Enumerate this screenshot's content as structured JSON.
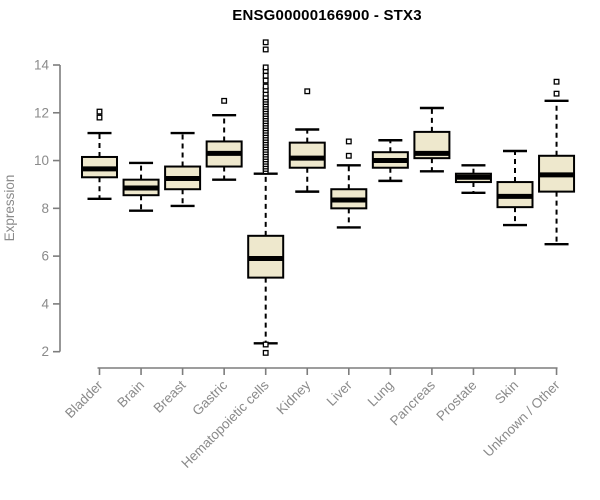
{
  "chart_data": {
    "type": "box",
    "title": "ENSG00000166900 - STX3",
    "ylabel": "Expression",
    "y_axis": {
      "min": 2,
      "max": 14,
      "ticks": [
        2,
        4,
        6,
        8,
        10,
        12,
        14
      ]
    },
    "x_axis": {
      "label_rotation_deg": -45
    },
    "grid": false,
    "legend": null,
    "categories": [
      "Bladder",
      "Brain",
      "Breast",
      "Gastric",
      "Hematopoietic cells",
      "Kidney",
      "Liver",
      "Lung",
      "Pancreas",
      "Prostate",
      "Skin",
      "Unknown / Other"
    ],
    "boxes": [
      {
        "category": "Bladder",
        "whisker_low": 8.4,
        "q1": 9.3,
        "median": 9.65,
        "q3": 10.15,
        "whisker_high": 11.15,
        "outliers": [
          11.8,
          12.05
        ]
      },
      {
        "category": "Brain",
        "whisker_low": 7.9,
        "q1": 8.55,
        "median": 8.85,
        "q3": 9.2,
        "whisker_high": 9.9,
        "outliers": []
      },
      {
        "category": "Breast",
        "whisker_low": 8.1,
        "q1": 8.8,
        "median": 9.25,
        "q3": 9.75,
        "whisker_high": 11.15,
        "outliers": []
      },
      {
        "category": "Gastric",
        "whisker_low": 9.2,
        "q1": 9.75,
        "median": 10.3,
        "q3": 10.8,
        "whisker_high": 11.9,
        "outliers": [
          12.5
        ]
      },
      {
        "category": "Hematopoietic cells",
        "whisker_low": 2.35,
        "q1": 5.1,
        "median": 5.9,
        "q3": 6.85,
        "whisker_high": 9.45,
        "outliers": [
          1.95,
          2.3,
          9.55,
          9.65,
          9.75,
          9.85,
          9.95,
          10.05,
          10.15,
          10.25,
          10.35,
          10.45,
          10.55,
          10.65,
          10.75,
          10.85,
          10.95,
          11.05,
          11.15,
          11.25,
          11.35,
          11.45,
          11.55,
          11.65,
          11.75,
          11.85,
          11.95,
          12.05,
          12.15,
          12.25,
          12.35,
          12.45,
          12.55,
          12.65,
          12.8,
          12.95,
          13.1,
          13.35,
          13.55,
          13.75,
          13.9,
          14.65,
          14.95
        ]
      },
      {
        "category": "Kidney",
        "whisker_low": 8.7,
        "q1": 9.7,
        "median": 10.1,
        "q3": 10.75,
        "whisker_high": 11.3,
        "outliers": [
          12.9
        ]
      },
      {
        "category": "Liver",
        "whisker_low": 7.2,
        "q1": 8.0,
        "median": 8.35,
        "q3": 8.8,
        "whisker_high": 9.8,
        "outliers": [
          10.2,
          10.8
        ]
      },
      {
        "category": "Lung",
        "whisker_low": 9.15,
        "q1": 9.7,
        "median": 10.0,
        "q3": 10.35,
        "whisker_high": 10.85,
        "outliers": []
      },
      {
        "category": "Pancreas",
        "whisker_low": 9.55,
        "q1": 10.1,
        "median": 10.3,
        "q3": 11.2,
        "whisker_high": 12.2,
        "outliers": []
      },
      {
        "category": "Prostate",
        "whisker_low": 8.65,
        "q1": 9.1,
        "median": 9.3,
        "q3": 9.45,
        "whisker_high": 9.8,
        "outliers": []
      },
      {
        "category": "Skin",
        "whisker_low": 7.3,
        "q1": 8.05,
        "median": 8.5,
        "q3": 9.1,
        "whisker_high": 10.4,
        "outliers": []
      },
      {
        "category": "Unknown / Other",
        "whisker_low": 6.5,
        "q1": 8.7,
        "median": 9.4,
        "q3": 10.2,
        "whisker_high": 12.5,
        "outliers": [
          12.8,
          13.3
        ]
      }
    ],
    "colors": {
      "background": "#FFFFFF",
      "box_fill": "#EEE8CD",
      "box_stroke": "#000000",
      "median": "#000000",
      "whisker": "#000000",
      "outlier_stroke": "#000000",
      "outlier_fill": "#FFFFFF",
      "axis_line": "#7D7D7D",
      "axis_text": "#8A8A8A",
      "title_text": "#000000"
    }
  }
}
